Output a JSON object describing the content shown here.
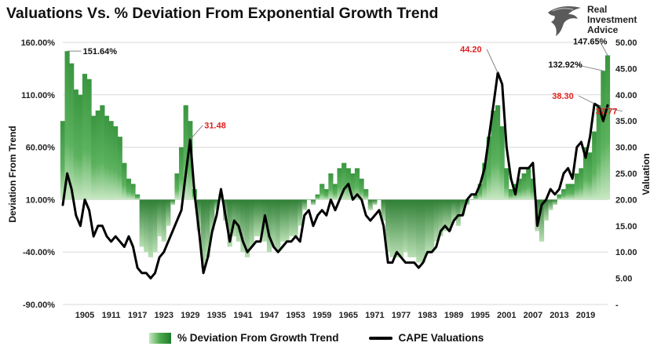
{
  "title": "Valuations Vs. % Deviation From Exponential Growth Trend",
  "logo": {
    "line1": "Real",
    "line2": "Investment",
    "line3": "Advice"
  },
  "chart_data": {
    "type": "area+line",
    "title": "Valuations Vs. % Deviation From Exponential Growth Trend",
    "ylabel_left": "Deviation From Trend",
    "ylabel_right": "Valuation",
    "left_ticks": [
      "160.00%",
      "110.00%",
      "60.00%",
      "10.00%",
      "-40.00%",
      "-90.00%"
    ],
    "right_ticks": [
      "50.00",
      "45.00",
      "40.00",
      "35.00",
      "30.00",
      "25.00",
      "20.00",
      "15.00",
      "10.00",
      "5.00",
      "-"
    ],
    "x_ticks": [
      "1905",
      "1911",
      "1917",
      "1923",
      "1929",
      "1935",
      "1941",
      "1947",
      "1953",
      "1959",
      "1965",
      "1971",
      "1977",
      "1983",
      "1989",
      "1995",
      "2001",
      "2007",
      "2013",
      "2019"
    ],
    "left_ylim": [
      -90,
      160
    ],
    "right_ylim": [
      0,
      50
    ],
    "xlim": [
      1900,
      2024
    ],
    "grid": true,
    "legend_position": "bottom",
    "colors": {
      "deviation_fill": "#3e9e45",
      "cape_line": "#000000",
      "red_annotation": "#e02020"
    },
    "series": [
      {
        "name": "% Deviation From Growth Trend",
        "axis": "left",
        "x": [
          1900,
          1901,
          1902,
          1903,
          1904,
          1905,
          1906,
          1907,
          1908,
          1909,
          1910,
          1911,
          1912,
          1913,
          1914,
          1915,
          1916,
          1917,
          1918,
          1919,
          1920,
          1921,
          1922,
          1923,
          1924,
          1925,
          1926,
          1927,
          1928,
          1929,
          1930,
          1931,
          1932,
          1933,
          1934,
          1935,
          1936,
          1937,
          1938,
          1939,
          1940,
          1941,
          1942,
          1943,
          1944,
          1945,
          1946,
          1947,
          1948,
          1949,
          1950,
          1951,
          1952,
          1953,
          1954,
          1955,
          1956,
          1957,
          1958,
          1959,
          1960,
          1961,
          1962,
          1963,
          1964,
          1965,
          1966,
          1967,
          1968,
          1969,
          1970,
          1971,
          1972,
          1973,
          1974,
          1975,
          1976,
          1977,
          1978,
          1979,
          1980,
          1981,
          1982,
          1983,
          1984,
          1985,
          1986,
          1987,
          1988,
          1989,
          1990,
          1991,
          1992,
          1993,
          1994,
          1995,
          1996,
          1997,
          1998,
          1999,
          2000,
          2001,
          2002,
          2003,
          2004,
          2005,
          2006,
          2007,
          2008,
          2009,
          2010,
          2011,
          2012,
          2013,
          2014,
          2015,
          2016,
          2017,
          2018,
          2019,
          2020,
          2021,
          2022,
          2023,
          2024
        ],
        "values": [
          85,
          151.64,
          140,
          115,
          110,
          130,
          125,
          90,
          95,
          100,
          90,
          85,
          80,
          70,
          45,
          30,
          25,
          15,
          -35,
          -40,
          -45,
          -40,
          -25,
          -30,
          -15,
          5,
          35,
          60,
          100,
          85,
          20,
          -20,
          -55,
          -45,
          -20,
          0,
          15,
          -10,
          -35,
          -25,
          -30,
          -40,
          -45,
          -35,
          -25,
          -25,
          -30,
          -40,
          -35,
          -40,
          -30,
          -30,
          -25,
          -25,
          -15,
          0,
          10,
          5,
          15,
          25,
          20,
          35,
          25,
          40,
          45,
          40,
          35,
          40,
          30,
          20,
          0,
          5,
          10,
          -10,
          -40,
          -45,
          -45,
          -45,
          -40,
          -45,
          -45,
          -50,
          -50,
          -40,
          -40,
          -30,
          -25,
          -20,
          -20,
          -10,
          -15,
          -5,
          5,
          10,
          15,
          25,
          45,
          70,
          95,
          100,
          80,
          40,
          20,
          25,
          30,
          35,
          40,
          30,
          -20,
          -30,
          -10,
          0,
          5,
          15,
          20,
          25,
          25,
          35,
          40,
          60,
          55,
          75,
          100,
          132.92,
          147.65
        ]
      },
      {
        "name": "CAPE Valuations",
        "axis": "right",
        "x": [
          1900,
          1901,
          1902,
          1903,
          1904,
          1905,
          1906,
          1907,
          1908,
          1909,
          1910,
          1911,
          1912,
          1913,
          1914,
          1915,
          1916,
          1917,
          1918,
          1919,
          1920,
          1921,
          1922,
          1923,
          1924,
          1925,
          1926,
          1927,
          1928,
          1929,
          1930,
          1931,
          1932,
          1933,
          1934,
          1935,
          1936,
          1937,
          1938,
          1939,
          1940,
          1941,
          1942,
          1943,
          1944,
          1945,
          1946,
          1947,
          1948,
          1949,
          1950,
          1951,
          1952,
          1953,
          1954,
          1955,
          1956,
          1957,
          1958,
          1959,
          1960,
          1961,
          1962,
          1963,
          1964,
          1965,
          1966,
          1967,
          1968,
          1969,
          1970,
          1971,
          1972,
          1973,
          1974,
          1975,
          1976,
          1977,
          1978,
          1979,
          1980,
          1981,
          1982,
          1983,
          1984,
          1985,
          1986,
          1987,
          1988,
          1989,
          1990,
          1991,
          1992,
          1993,
          1994,
          1995,
          1996,
          1997,
          1998,
          1999,
          2000,
          2001,
          2002,
          2003,
          2004,
          2005,
          2006,
          2007,
          2008,
          2009,
          2010,
          2011,
          2012,
          2013,
          2014,
          2015,
          2016,
          2017,
          2018,
          2019,
          2020,
          2021,
          2022,
          2023,
          2024
        ],
        "values": [
          19,
          25,
          22,
          17,
          15,
          20,
          18,
          13,
          15,
          15,
          13,
          12,
          13,
          12,
          11,
          13,
          11,
          7,
          6,
          6,
          5,
          6,
          9,
          10,
          12,
          14,
          16,
          18,
          25,
          31.48,
          21,
          14,
          6,
          9,
          14,
          17,
          22,
          17,
          12,
          16,
          15,
          12,
          10,
          11,
          12,
          12,
          17,
          13,
          11,
          10,
          11,
          12,
          12,
          13,
          12,
          17,
          18,
          15,
          17,
          18,
          17,
          20,
          18,
          20,
          22,
          23,
          20,
          21,
          20,
          17,
          16,
          17,
          18,
          15,
          8,
          8,
          10,
          9,
          8,
          8,
          8,
          7,
          8,
          10,
          10,
          11,
          14,
          15,
          14,
          16,
          17,
          17,
          20,
          21,
          21,
          23,
          26,
          32,
          38,
          44.2,
          42,
          30,
          24,
          21,
          26,
          26,
          26,
          27,
          15,
          19,
          20,
          22,
          21,
          22,
          25,
          26,
          24,
          30,
          31,
          28,
          32,
          38.3,
          37.77,
          35,
          38
        ]
      }
    ],
    "annotations": [
      {
        "text": "151.64%",
        "color": "black",
        "series": "% Deviation From Growth Trend",
        "x": 1901,
        "y": 151.64
      },
      {
        "text": "31.48",
        "color": "red",
        "series": "CAPE Valuations",
        "x": 1929,
        "y": 31.48
      },
      {
        "text": "44.20",
        "color": "red",
        "series": "CAPE Valuations",
        "x": 1999,
        "y": 44.2
      },
      {
        "text": "147.65%",
        "color": "black",
        "series": "% Deviation From Growth Trend",
        "x": 2024,
        "y": 147.65
      },
      {
        "text": "132.92%",
        "color": "black",
        "series": "% Deviation From Growth Trend",
        "x": 2023,
        "y": 132.92
      },
      {
        "text": "38.30",
        "color": "red",
        "series": "CAPE Valuations",
        "x": 2021,
        "y": 38.3
      },
      {
        "text": "37.77",
        "color": "red",
        "series": "CAPE Valuations",
        "x": 2022,
        "y": 37.77
      }
    ]
  },
  "legend": [
    {
      "label": "% Deviation From Growth Trend"
    },
    {
      "label": "CAPE Valuations"
    }
  ]
}
